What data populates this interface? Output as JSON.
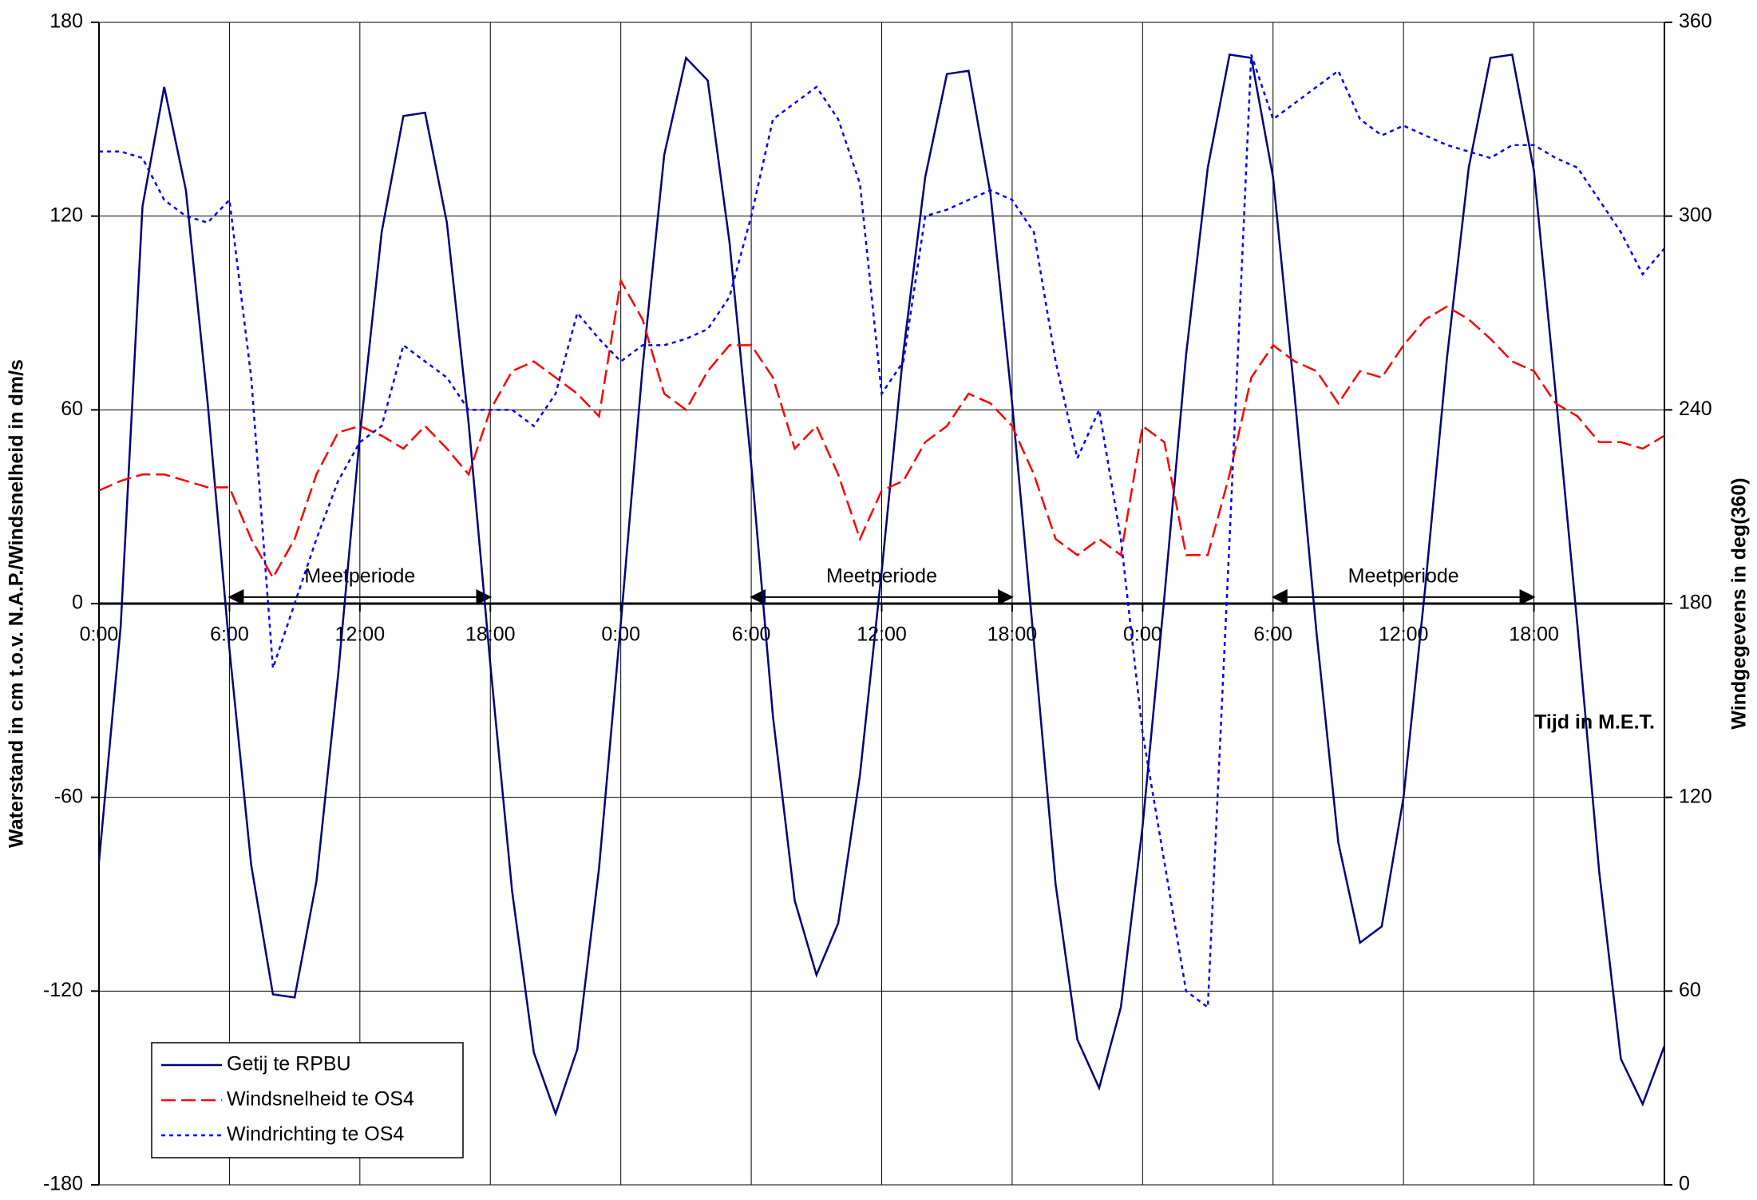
{
  "chart_data": {
    "type": "line",
    "y_label": "Waterstand in cm t.o.v. N.A.P./Windsnelheid in dm/s",
    "y2_label": "Windgegevens in deg(360)",
    "x_label": "Tijd in M.E.T.",
    "x": [
      0,
      1,
      2,
      3,
      4,
      5,
      6,
      7,
      8,
      9,
      10,
      11,
      12,
      13,
      14,
      15,
      16,
      17,
      18,
      19,
      20,
      21,
      22,
      23,
      24,
      25,
      26,
      27,
      28,
      29,
      30,
      31,
      32,
      33,
      34,
      35,
      36,
      37,
      38,
      39,
      40,
      41,
      42,
      43,
      44,
      45,
      46,
      47,
      48,
      49,
      50,
      51,
      52,
      53,
      54,
      55,
      56,
      57,
      58,
      59,
      60,
      61,
      62,
      63,
      64,
      65,
      66,
      67,
      68,
      69,
      70,
      71,
      72
    ],
    "xlim": [
      0,
      72
    ],
    "xticks": [
      {
        "value": 0,
        "label": "0:00"
      },
      {
        "value": 6,
        "label": "6:00"
      },
      {
        "value": 12,
        "label": "12:00"
      },
      {
        "value": 18,
        "label": "18:00"
      },
      {
        "value": 24,
        "label": "0:00"
      },
      {
        "value": 30,
        "label": "6:00"
      },
      {
        "value": 36,
        "label": "12:00"
      },
      {
        "value": 42,
        "label": "18:00"
      },
      {
        "value": 48,
        "label": "0:00"
      },
      {
        "value": 54,
        "label": "6:00"
      },
      {
        "value": 60,
        "label": "12:00"
      },
      {
        "value": 66,
        "label": "18:00"
      }
    ],
    "ylim": [
      -180,
      180
    ],
    "yticks": [
      -180,
      -120,
      -60,
      0,
      60,
      120,
      180
    ],
    "y2lim": [
      0,
      360
    ],
    "y2ticks": [
      0,
      60,
      120,
      180,
      240,
      300,
      360
    ],
    "grid": true,
    "legend": "lower left",
    "series": [
      {
        "name": "Getij te RPBU",
        "color": "#000080",
        "dash": "solid",
        "values": [
          -80,
          -7,
          123,
          160,
          128,
          62,
          -14,
          -81,
          -121,
          -122,
          -86,
          -22,
          52,
          115,
          151,
          152,
          118,
          56,
          -19,
          -89,
          -139,
          -158,
          -138,
          -82,
          -6,
          73,
          139,
          169,
          162,
          112,
          43,
          -35,
          -92,
          -115,
          -99,
          -53,
          10,
          78,
          132,
          164,
          165,
          127,
          62,
          -12,
          -87,
          -135,
          -150,
          -125,
          -69,
          2,
          77,
          135,
          170,
          169,
          132,
          64,
          -9,
          -74,
          -105,
          -100,
          -60,
          5,
          76,
          135,
          169,
          170,
          134,
          65,
          -7,
          -83,
          -141,
          -155,
          -137
        ]
      },
      {
        "name": "Windsnelheid te OS4",
        "color": "#ff0000",
        "dash": "dashed",
        "values": [
          35,
          38,
          40,
          40,
          38,
          36,
          36,
          20,
          8,
          20,
          40,
          53,
          55,
          52,
          48,
          55,
          48,
          40,
          60,
          72,
          75,
          70,
          65,
          58,
          100,
          88,
          65,
          60,
          72,
          80,
          80,
          70,
          48,
          55,
          40,
          20,
          35,
          38,
          50,
          55,
          65,
          62,
          55,
          40,
          20,
          15,
          20,
          15,
          55,
          50,
          15,
          15,
          40,
          70,
          80,
          75,
          72,
          62,
          72,
          70,
          80,
          88,
          92,
          88,
          82,
          75,
          72,
          62,
          58,
          50,
          50,
          48,
          52
        ]
      },
      {
        "name": "Windrichting te OS4",
        "color": "#0000ff",
        "dash": "dotted",
        "axis": "y2",
        "values": [
          320,
          320,
          318,
          305,
          300,
          298,
          305,
          250,
          160,
          180,
          200,
          218,
          230,
          235,
          260,
          255,
          250,
          240,
          240,
          240,
          235,
          245,
          270,
          262,
          255,
          260,
          260,
          262,
          265,
          275,
          300,
          330,
          335,
          340,
          330,
          310,
          245,
          255,
          300,
          302,
          305,
          308,
          305,
          295,
          255,
          225,
          240,
          200,
          140,
          100,
          60,
          55,
          200,
          350,
          330,
          335,
          340,
          345,
          330,
          325,
          328,
          325,
          322,
          320,
          318,
          322,
          322,
          318,
          315,
          305,
          295,
          282,
          290
        ]
      }
    ],
    "annotations": [
      {
        "text": "Meetperiode",
        "x": [
          6,
          18
        ]
      },
      {
        "text": "Meetperiode",
        "x": [
          30,
          42
        ]
      },
      {
        "text": "Meetperiode",
        "x": [
          54,
          66
        ]
      }
    ]
  }
}
